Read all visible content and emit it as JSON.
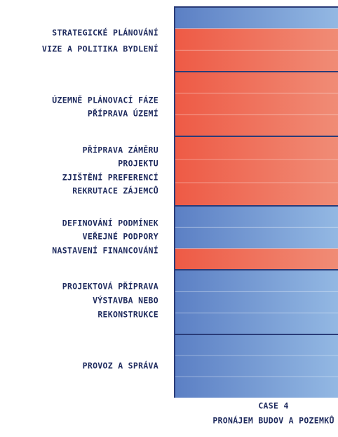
{
  "phases": [
    {
      "lines": [
        "STRATEGICKÉ PLÁNOVÁNÍ",
        "VIZE A POLITIKA BYDLENÍ"
      ]
    },
    {
      "lines": [
        "ÚZEMNĚ PLÁNOVACÍ FÁZE",
        "PŘÍPRAVA ÚZEMÍ"
      ]
    },
    {
      "lines": [
        "PŘÍPRAVA ZÁMĚRU",
        "PROJEKTU",
        "ZJIŠTĚNÍ PREFERENCÍ",
        "REKRUTACE ZÁJEMCŮ"
      ]
    },
    {
      "lines": [
        "DEFINOVÁNÍ PODMÍNEK",
        "VEŘEJNÉ PODPORY",
        "NASTAVENÍ FINANCOVÁNÍ"
      ]
    },
    {
      "lines": [
        "PROJEKTOVÁ PŘÍPRAVA",
        "VÝSTAVBA NEBO",
        "REKONSTRUKCE"
      ]
    },
    {
      "lines": [
        "PROVOZ A SPRÁVA"
      ]
    }
  ],
  "case": {
    "title": "CASE 4",
    "subtitle": "PRONÁJEM BUDOV A POZEMKŮ"
  }
}
